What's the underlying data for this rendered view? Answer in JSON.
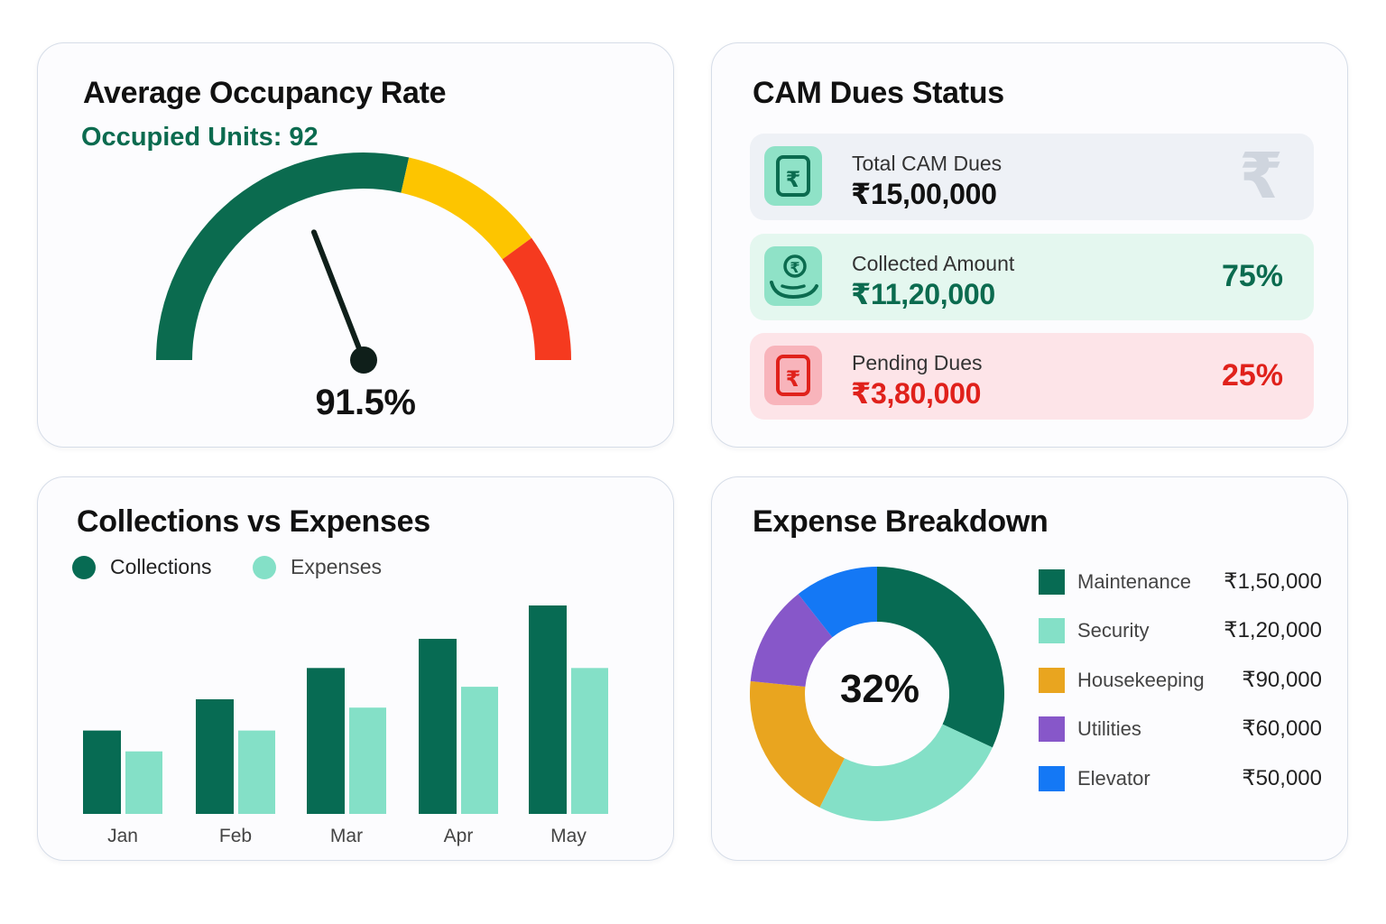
{
  "occupancy": {
    "title": "Average Occupancy Rate",
    "subtitle": "Occupied Units: 92",
    "value_label": "91.5%",
    "colors": {
      "green": "#0b6b4f",
      "yellow": "#fdc500",
      "red": "#f53a1f"
    }
  },
  "cam": {
    "title": "CAM Dues Status",
    "rows": [
      {
        "label": "Total CAM Dues",
        "amount": "₹15,00,000",
        "pct": "",
        "icon": "rupee-receipt-icon",
        "watermark": "₹"
      },
      {
        "label": "Collected Amount",
        "amount": "₹11,20,000",
        "pct": "75%",
        "icon": "rupee-coin-hand-icon"
      },
      {
        "label": "Pending Dues",
        "amount": "₹3,80,000",
        "pct": "25%",
        "icon": "rupee-receipt-icon"
      }
    ]
  },
  "collections": {
    "title": "Collections vs Expenses",
    "legend": [
      "Collections",
      "Expenses"
    ]
  },
  "expense": {
    "title": "Expense Breakdown",
    "center_label": "32%",
    "items": [
      {
        "label": "Maintenance",
        "amount": "₹1,50,000",
        "color": "#076b53"
      },
      {
        "label": "Security",
        "amount": "₹1,20,000",
        "color": "#84e0c7"
      },
      {
        "label": "Housekeeping",
        "amount": "₹90,000",
        "color": "#e9a51f"
      },
      {
        "label": "Utilities",
        "amount": "₹60,000",
        "color": "#8757c9"
      },
      {
        "label": "Elevator",
        "amount": "₹50,000",
        "color": "#1478f5"
      }
    ]
  },
  "chart_data": [
    {
      "type": "gauge",
      "title": "Average Occupancy Rate",
      "value": 91.5,
      "min": 0,
      "max": 100,
      "bands": [
        {
          "from": 0,
          "to": 57,
          "color": "#0b6b4f"
        },
        {
          "from": 57,
          "to": 80,
          "color": "#fdc500"
        },
        {
          "from": 80,
          "to": 100,
          "color": "#f53a1f"
        }
      ]
    },
    {
      "type": "bar",
      "title": "Collections vs Expenses",
      "categories": [
        "Jan",
        "Feb",
        "Mar",
        "Apr",
        "May"
      ],
      "series": [
        {
          "name": "Collections",
          "values": [
            40,
            55,
            70,
            84,
            100
          ],
          "color": "#076b53"
        },
        {
          "name": "Expenses",
          "values": [
            30,
            40,
            51,
            61,
            70
          ],
          "color": "#84e0c7"
        }
      ],
      "ylim": [
        0,
        100
      ],
      "grid": false,
      "legend": "top-left"
    },
    {
      "type": "pie",
      "title": "Expense Breakdown",
      "donut": true,
      "labels": [
        "Maintenance",
        "Security",
        "Housekeeping",
        "Utilities",
        "Elevator"
      ],
      "values": [
        150000,
        120000,
        90000,
        60000,
        50000
      ],
      "colors": [
        "#076b53",
        "#84e0c7",
        "#e9a51f",
        "#8757c9",
        "#1478f5"
      ]
    }
  ]
}
